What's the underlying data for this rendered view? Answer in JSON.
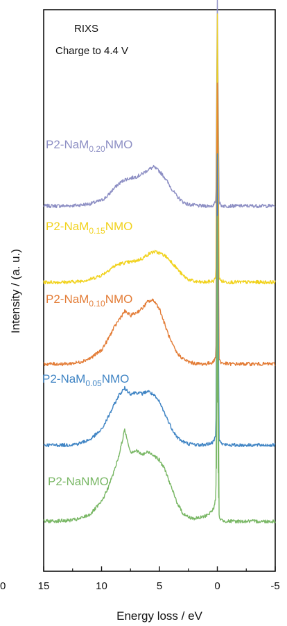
{
  "chart_data": {
    "type": "line",
    "title": "",
    "annotations": [
      "RIXS",
      "Charge to 4.4 V"
    ],
    "xlabel": "Energy loss / eV",
    "ylabel": "Intensity / (a. u.)",
    "xlim": [
      15,
      -5
    ],
    "xticks": [
      "15",
      "10",
      "5",
      "0",
      "-5"
    ],
    "clipped_tick_label": "0",
    "x_reversed": true,
    "y_ticks_shown": false,
    "grid": false,
    "legend": "inline-labels",
    "colors": {
      "P2-NaM0.20NMO": "#8d8fc4",
      "P2-NaM0.15NMO": "#f1d21d",
      "P2-NaM0.10NMO": "#e37c36",
      "P2-NaM0.05NMO": "#3f84c4",
      "P2-NaNMO": "#79b765"
    },
    "series": [
      {
        "label_base": "P2-NaM",
        "label_sub": "0.20",
        "label_end": "NMO",
        "color": "#8d8fc4",
        "baseline": 4.55,
        "x": [
          15,
          13,
          12,
          11,
          10,
          9.5,
          9,
          8.5,
          8,
          7.5,
          7,
          6.5,
          6,
          5.5,
          5,
          4.5,
          4,
          3.5,
          3,
          2.5,
          2,
          1.5,
          1,
          0.5,
          0.3,
          0.15,
          0.05,
          0,
          -0.05,
          -0.15,
          -0.3,
          -0.5,
          -1,
          -2,
          -3,
          -4,
          -5
        ],
        "values": [
          0,
          0,
          0.01,
          0.03,
          0.08,
          0.14,
          0.24,
          0.32,
          0.38,
          0.4,
          0.42,
          0.46,
          0.52,
          0.56,
          0.5,
          0.4,
          0.26,
          0.14,
          0.06,
          0.02,
          0.01,
          0,
          0,
          0,
          0.01,
          0.06,
          0.5,
          3.0,
          0.5,
          0.06,
          0.01,
          0,
          0,
          0,
          0,
          0,
          0
        ]
      },
      {
        "label_base": "P2-NaM",
        "label_sub": "0.15",
        "label_end": "NMO",
        "color": "#f1d21d",
        "baseline": 3.45,
        "x": [
          15,
          13,
          12,
          11,
          10,
          9.5,
          9,
          8.5,
          8,
          7.5,
          7,
          6.5,
          6,
          5.5,
          5,
          4.5,
          4,
          3.5,
          3,
          2.5,
          2,
          1.5,
          1,
          0.5,
          0.3,
          0.15,
          0.05,
          0,
          -0.05,
          -0.15,
          -0.3,
          -0.5,
          -1,
          -2,
          -3,
          -4,
          -5
        ],
        "values": [
          0,
          0,
          0.01,
          0.04,
          0.1,
          0.16,
          0.22,
          0.26,
          0.28,
          0.29,
          0.31,
          0.34,
          0.4,
          0.44,
          0.42,
          0.38,
          0.3,
          0.2,
          0.1,
          0.04,
          0.01,
          0,
          0,
          0.01,
          0.02,
          0.06,
          0.5,
          3.85,
          0.5,
          0.06,
          0.02,
          0.01,
          0,
          0,
          0,
          0,
          0
        ]
      },
      {
        "label_base": "P2-NaM",
        "label_sub": "0.10",
        "label_end": "NMO",
        "color": "#e37c36",
        "baseline": 2.27,
        "x": [
          15,
          13,
          12,
          11,
          10,
          9.5,
          9,
          8.5,
          8,
          7.5,
          7,
          6.5,
          6,
          5.5,
          5,
          4.5,
          4,
          3.5,
          3,
          2.5,
          2,
          1.5,
          1,
          0.5,
          0.3,
          0.15,
          0.05,
          0,
          -0.05,
          -0.15,
          -0.3,
          -0.5,
          -1,
          -2,
          -3,
          -4,
          -5
        ],
        "values": [
          0,
          0,
          0.02,
          0.08,
          0.2,
          0.34,
          0.5,
          0.64,
          0.76,
          0.7,
          0.74,
          0.8,
          0.9,
          0.92,
          0.8,
          0.55,
          0.32,
          0.16,
          0.08,
          0.03,
          0.01,
          0,
          0,
          0.02,
          0.04,
          0.1,
          0.6,
          4.05,
          0.6,
          0.08,
          0.02,
          0.01,
          0,
          0,
          0,
          0,
          0
        ]
      },
      {
        "label_base": "P2-NaM",
        "label_sub": "0.05",
        "label_end": "NMO",
        "color": "#3f84c4",
        "baseline": 1.1,
        "x": [
          15,
          13,
          12,
          11,
          10,
          9.5,
          9,
          8.5,
          8,
          7.5,
          7,
          6.5,
          6,
          5.5,
          5,
          4.5,
          4,
          3.5,
          3,
          2.5,
          2,
          1.5,
          1,
          0.5,
          0.3,
          0.15,
          0.05,
          0,
          -0.05,
          -0.15,
          -0.3,
          -0.5,
          -1,
          -2,
          -3,
          -4,
          -5
        ],
        "values": [
          0,
          0,
          0.02,
          0.08,
          0.22,
          0.38,
          0.55,
          0.72,
          0.82,
          0.74,
          0.76,
          0.74,
          0.78,
          0.72,
          0.62,
          0.44,
          0.26,
          0.12,
          0.05,
          0.02,
          0.01,
          0,
          0.01,
          0.03,
          0.05,
          0.15,
          0.9,
          4.2,
          0.9,
          0.1,
          0.03,
          0.01,
          0,
          0,
          0,
          0,
          0
        ]
      },
      {
        "label_base": "P2-NaNMO",
        "label_sub": "",
        "label_end": "",
        "color": "#79b765",
        "baseline": 0,
        "x": [
          15,
          13,
          12,
          11,
          10,
          9.5,
          9,
          8.5,
          8,
          7.5,
          7,
          6.5,
          6,
          5.5,
          5,
          4.5,
          4,
          3.5,
          3,
          2.5,
          2,
          1.5,
          1,
          0.5,
          0.3,
          0.15,
          0.05,
          0,
          -0.05,
          -0.15,
          -0.3,
          -0.5,
          -1,
          -2,
          -3,
          -4,
          -5
        ],
        "values": [
          0,
          0.01,
          0.03,
          0.1,
          0.28,
          0.46,
          0.68,
          0.95,
          1.32,
          1.0,
          1.02,
          0.96,
          1.0,
          0.96,
          0.88,
          0.74,
          0.5,
          0.28,
          0.12,
          0.06,
          0.04,
          0.05,
          0.08,
          0.14,
          0.2,
          0.32,
          0.9,
          4.4,
          0.9,
          0.08,
          0.02,
          0.01,
          0,
          0,
          0,
          0,
          0
        ]
      }
    ]
  }
}
